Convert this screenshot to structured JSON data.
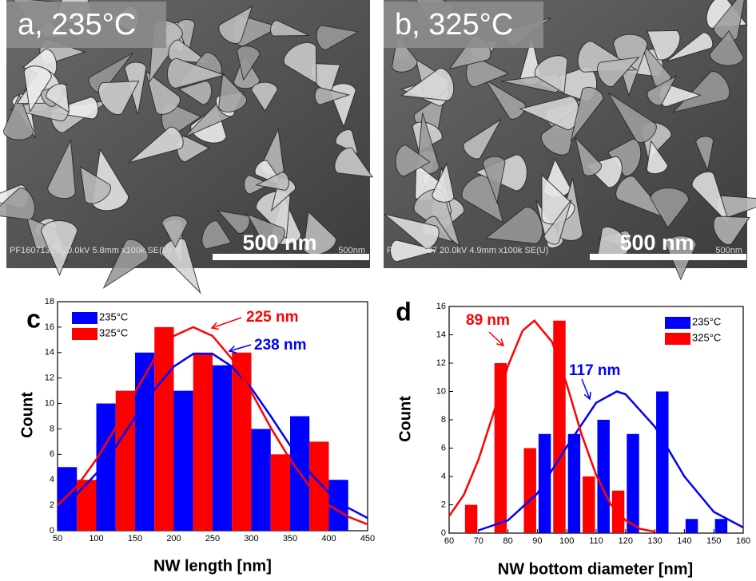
{
  "images": [
    {
      "label": "a, 235°C",
      "scale_bar": "500 nm",
      "info": "PF16071317 20.0kV 5.8mm x100k SE(U)",
      "info_scale": "500nm"
    },
    {
      "label": "b, 325°C",
      "scale_bar": "500 nm",
      "info": "PF16070637 20.0kV 4.9mm x100k SE(U)",
      "info_scale": "500nm"
    }
  ],
  "chart_data": [
    {
      "type": "histogram",
      "panel": "c",
      "x_label": "NW length [nm]",
      "y_label": "Count",
      "xlim": [
        50,
        450
      ],
      "xticks": [
        50,
        100,
        150,
        200,
        250,
        300,
        350,
        400,
        450
      ],
      "ylim": [
        0,
        18
      ],
      "yticks": [
        0,
        2,
        4,
        6,
        8,
        10,
        12,
        14,
        16,
        18
      ],
      "legend": "upper left",
      "series": [
        {
          "name": "235°C",
          "color": "#0000ff",
          "x": [
            62.5,
            112.5,
            162.5,
            212.5,
            262.5,
            312.5,
            362.5,
            412.5
          ],
          "values": [
            5,
            10,
            14,
            11,
            13,
            8,
            9,
            4
          ],
          "fit": {
            "label": "238 nm",
            "x": [
              50,
              75,
              100,
              125,
              150,
              175,
              200,
              225,
              250,
              275,
              300,
              325,
              350,
              375,
              400,
              425,
              450
            ],
            "values": [
              1.7,
              2.9,
              4.5,
              6.6,
              8.9,
              11.1,
              12.9,
              13.9,
              13.9,
              12.9,
              11.2,
              9.0,
              6.7,
              4.6,
              3.0,
              1.8,
              1.0
            ]
          }
        },
        {
          "name": "325°C",
          "color": "#ff0000",
          "x": [
            87.5,
            137.5,
            187.5,
            237.5,
            287.5,
            337.5,
            387.5
          ],
          "values": [
            4,
            11,
            16,
            14,
            14,
            6,
            7
          ],
          "fit": {
            "label": "225 nm",
            "x": [
              50,
              75,
              100,
              125,
              150,
              175,
              200,
              225,
              250,
              275,
              300,
              325,
              350,
              375,
              400,
              425,
              450
            ],
            "values": [
              2.0,
              3.5,
              5.6,
              8.1,
              10.9,
              13.5,
              15.3,
              16,
              15.3,
              13.5,
              10.9,
              8.1,
              5.6,
              3.5,
              2.0,
              1.1,
              0.5
            ]
          }
        }
      ]
    },
    {
      "type": "histogram",
      "panel": "d",
      "x_label": "NW bottom diameter [nm]",
      "y_label": "Count",
      "xlim": [
        60,
        160
      ],
      "xticks": [
        60,
        70,
        80,
        90,
        100,
        110,
        120,
        130,
        140,
        150,
        160
      ],
      "ylim": [
        0,
        16
      ],
      "yticks": [
        0,
        2,
        4,
        6,
        8,
        10,
        12,
        14,
        16
      ],
      "legend": "upper right",
      "series": [
        {
          "name": "235°C",
          "color": "#0000ff",
          "x": [
            92.5,
            102.5,
            112.5,
            122.5,
            132.5,
            142.5,
            152.5
          ],
          "values": [
            7,
            7,
            8,
            7,
            10,
            1,
            1
          ],
          "fit": {
            "label": "117 nm",
            "x": [
              70,
              80,
              90,
              100,
              110,
              117,
              120,
              130,
              140,
              150,
              160
            ],
            "values": [
              0.2,
              0.9,
              2.8,
              6.1,
              9.2,
              10,
              9.8,
              7.5,
              4.0,
              1.5,
              0.4
            ]
          }
        },
        {
          "name": "325°C",
          "color": "#ff0000",
          "x": [
            67.5,
            77.5,
            87.5,
            97.5,
            107.5,
            117.5
          ],
          "values": [
            2,
            12,
            6,
            15,
            4,
            3
          ],
          "fit": {
            "label": "89 nm",
            "x": [
              60,
              65,
              70,
              75,
              80,
              85,
              89,
              95,
              100,
              105,
              110,
              115,
              120,
              125,
              130
            ],
            "values": [
              1.2,
              2.7,
              5.2,
              8.4,
              11.8,
              14.3,
              15,
              13.5,
              10.5,
              7.0,
              4.1,
              2.0,
              0.9,
              0.3,
              0.1
            ]
          }
        }
      ]
    }
  ]
}
